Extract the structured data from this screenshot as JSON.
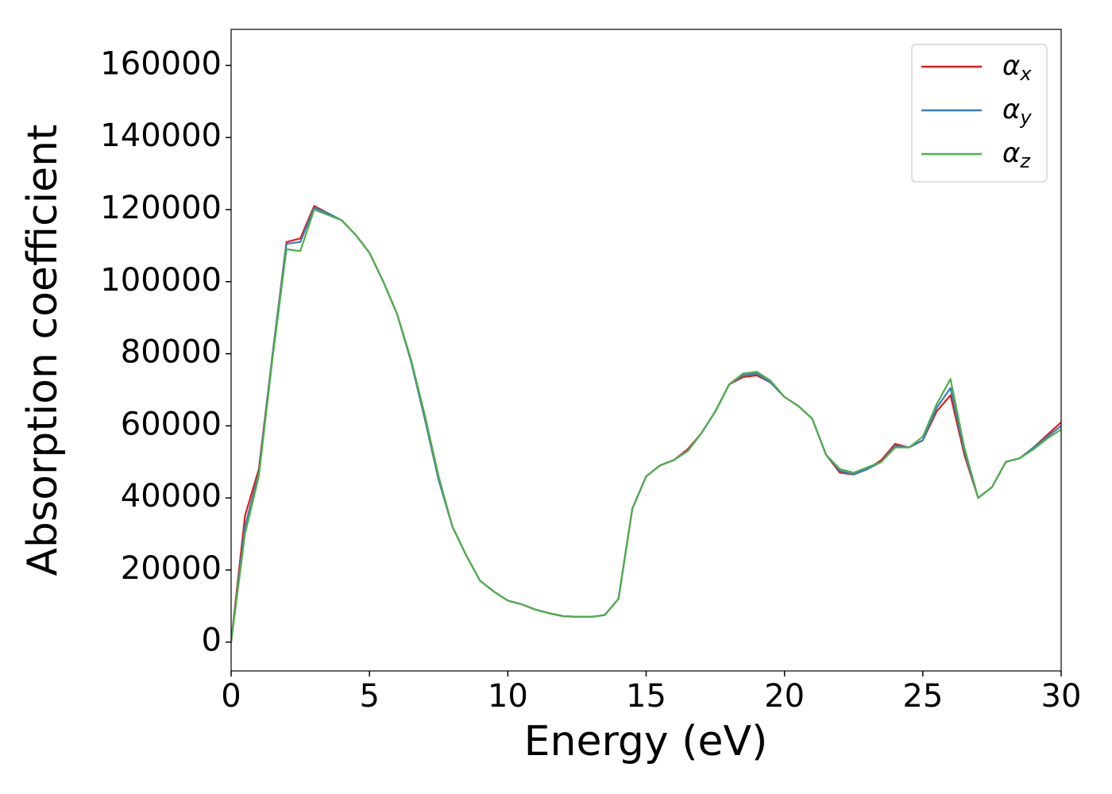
{
  "chart_data": {
    "type": "line",
    "xlabel": "Energy (eV)",
    "ylabel": "Absorption coefficient",
    "x": [
      0,
      0.5,
      1,
      1.5,
      2,
      2.5,
      3,
      3.5,
      4,
      4.5,
      5,
      5.5,
      6,
      6.5,
      7,
      7.5,
      8,
      8.5,
      9,
      9.5,
      10,
      10.5,
      11,
      11.5,
      12,
      12.5,
      13,
      13.5,
      14,
      14.5,
      15,
      15.5,
      16,
      16.5,
      17,
      17.5,
      18,
      18.5,
      19,
      19.5,
      20,
      20.5,
      21,
      21.5,
      22,
      22.5,
      23,
      23.5,
      24,
      24.5,
      25,
      25.5,
      26,
      26.5,
      27,
      27.5,
      28,
      28.5,
      29,
      29.5,
      30
    ],
    "series": [
      {
        "name": "αx",
        "color": "#e41a1c",
        "values": [
          0,
          35000,
          48000,
          80000,
          111000,
          112000,
          121000,
          119000,
          117000,
          113000,
          108000,
          100000,
          91000,
          78000,
          62000,
          45000,
          32000,
          24000,
          17000,
          14000,
          11500,
          10500,
          9000,
          8000,
          7200,
          7000,
          7000,
          7500,
          12000,
          37000,
          46000,
          49000,
          50500,
          53500,
          58000,
          64000,
          71500,
          73500,
          74000,
          72000,
          68000,
          65500,
          62000,
          52000,
          47000,
          46500,
          48000,
          50500,
          55000,
          54000,
          56000,
          64000,
          68500,
          52000,
          40000,
          43000,
          50000,
          51000,
          54000,
          57500,
          61000
        ]
      },
      {
        "name": "αy",
        "color": "#377eb8",
        "values": [
          0,
          32000,
          47000,
          80000,
          110500,
          111000,
          120500,
          119000,
          117000,
          113000,
          108000,
          100000,
          91000,
          78000,
          62000,
          45000,
          32000,
          24000,
          17000,
          14000,
          11500,
          10500,
          9000,
          8000,
          7200,
          7000,
          7000,
          7500,
          12000,
          37000,
          46000,
          49000,
          50500,
          53000,
          58000,
          64000,
          71500,
          74000,
          74500,
          72000,
          68000,
          65500,
          62000,
          52000,
          47500,
          46500,
          48000,
          50000,
          54500,
          54000,
          56000,
          65000,
          70500,
          53000,
          40000,
          43000,
          50000,
          51000,
          54000,
          57000,
          60000
        ]
      },
      {
        "name": "αz",
        "color": "#4daf4a",
        "values": [
          0,
          30000,
          46000,
          79000,
          109000,
          108500,
          120000,
          118500,
          117000,
          113000,
          108000,
          100000,
          91000,
          78500,
          63000,
          46000,
          32000,
          24000,
          17000,
          14000,
          11500,
          10500,
          9000,
          8000,
          7200,
          7000,
          7000,
          7500,
          12000,
          37000,
          46000,
          49000,
          50500,
          53000,
          58000,
          64000,
          71500,
          74500,
          75000,
          72500,
          68000,
          65500,
          62000,
          52000,
          48000,
          47000,
          48500,
          50000,
          54000,
          54000,
          57000,
          66000,
          73000,
          54000,
          40000,
          43000,
          50000,
          51000,
          53500,
          56500,
          59000
        ]
      }
    ],
    "xlim": [
      0,
      30
    ],
    "xticks": [
      0,
      5,
      10,
      15,
      20,
      25,
      30
    ],
    "ylim": [
      -8000,
      170000
    ],
    "yticks": [
      0,
      20000,
      40000,
      60000,
      80000,
      100000,
      120000,
      140000,
      160000
    ],
    "legend": "upper right",
    "grid": false
  }
}
